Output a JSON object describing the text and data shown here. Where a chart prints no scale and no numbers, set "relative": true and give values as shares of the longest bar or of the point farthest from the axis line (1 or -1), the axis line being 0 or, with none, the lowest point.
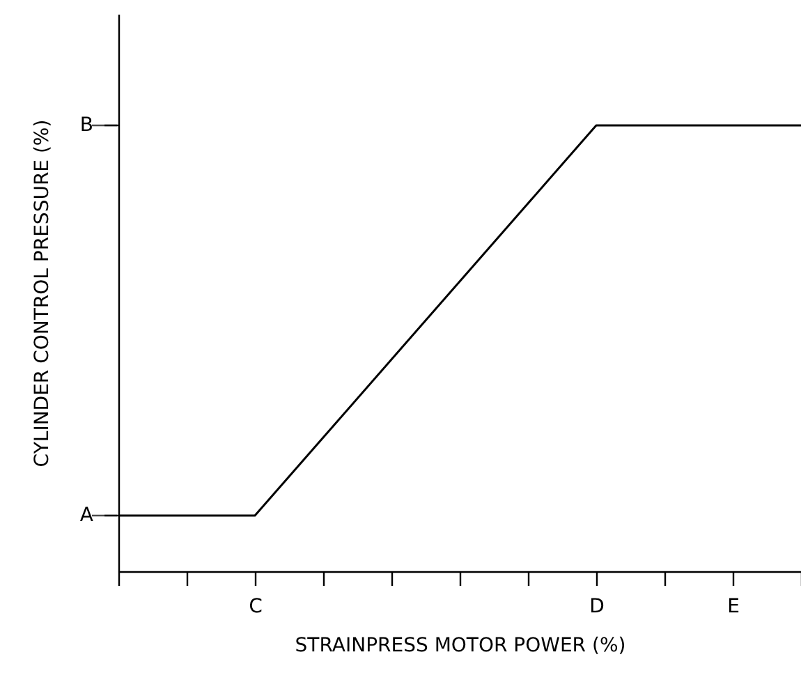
{
  "chart_data": {
    "type": "line",
    "xlabel": "STRAINPRESS MOTOR POWER (%)",
    "ylabel": "CYLINDER CONTROL PRESSURE (%)",
    "categories": [
      null,
      null,
      "C",
      null,
      null,
      null,
      null,
      "D",
      null,
      "E",
      null
    ],
    "relative": true,
    "series": [
      {
        "color": "#000000",
        "values": [
          0.125,
          0.125,
          0.125,
          0.3,
          0.475,
          0.65,
          0.825,
          1,
          1,
          1,
          1
        ]
      }
    ],
    "annotations": [
      "A",
      "B"
    ],
    "grid": false,
    "marker": "none",
    "line_style": "solid"
  }
}
